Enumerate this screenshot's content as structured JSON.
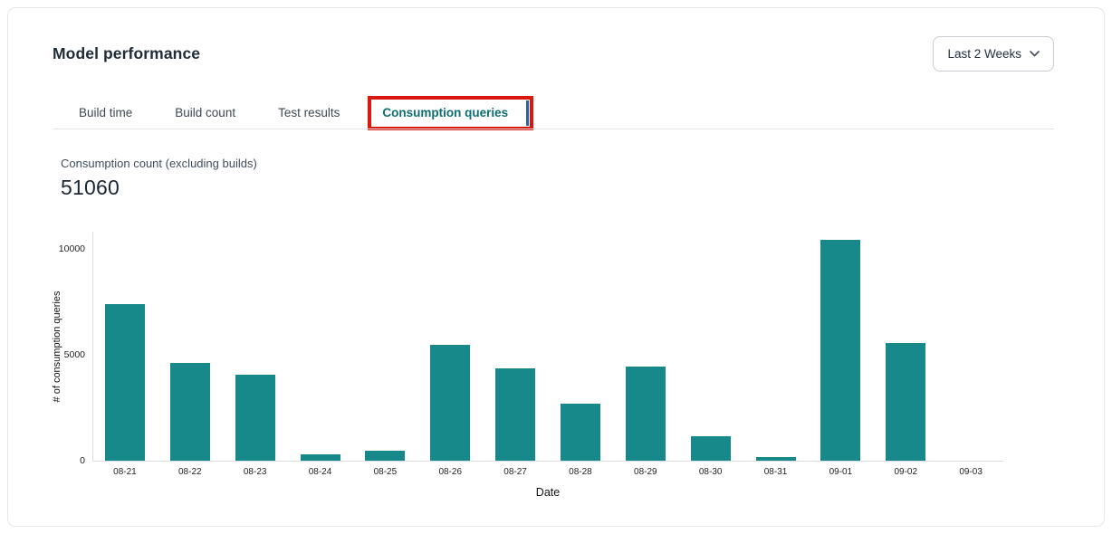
{
  "page": {
    "title": "Model performance"
  },
  "time_range_dropdown": {
    "value": "Last 2 Weeks",
    "icon": "chevron-down-icon"
  },
  "tabs": [
    {
      "label": "Build time",
      "active": false
    },
    {
      "label": "Build count",
      "active": false
    },
    {
      "label": "Test results",
      "active": false
    },
    {
      "label": "Consumption queries",
      "active": true,
      "annotated": true
    }
  ],
  "metric": {
    "label": "Consumption count (excluding builds)",
    "value": "51060"
  },
  "chart_data": {
    "type": "bar",
    "title": "",
    "categories": [
      "08-21",
      "08-22",
      "08-23",
      "08-24",
      "08-25",
      "08-26",
      "08-27",
      "08-28",
      "08-29",
      "08-30",
      "08-31",
      "09-01",
      "09-02",
      "09-03"
    ],
    "values": [
      7400,
      4600,
      4050,
      300,
      450,
      5480,
      4350,
      2700,
      4450,
      1150,
      180,
      10400,
      5550,
      0
    ],
    "xlabel": "Date",
    "ylabel": "# of consumption queries",
    "ylim": [
      0,
      10800
    ],
    "yticks": [
      0,
      5000,
      10000
    ],
    "grid": false,
    "legend": false,
    "bar_color": "#17898b"
  },
  "colors": {
    "bar_teal": "#17898b",
    "active_tab_teal": "#0d6e70",
    "annotation_red": "#d9190f",
    "annotation_blue_edge": "#2f5da8",
    "card_border": "#e4e6ea",
    "axis_gray": "#dcdee1",
    "title_text": "#1f2b38"
  }
}
